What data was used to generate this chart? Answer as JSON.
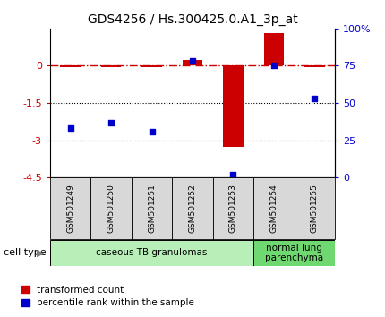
{
  "title": "GDS4256 / Hs.300425.0.A1_3p_at",
  "samples": [
    "GSM501249",
    "GSM501250",
    "GSM501251",
    "GSM501252",
    "GSM501253",
    "GSM501254",
    "GSM501255"
  ],
  "red_values": [
    -0.04,
    -0.05,
    -0.06,
    0.22,
    -3.25,
    1.32,
    -0.05
  ],
  "blue_percentiles": [
    33,
    37,
    31,
    78,
    2,
    75,
    53
  ],
  "ylim_left": [
    -4.5,
    1.5
  ],
  "ylim_right": [
    0,
    100
  ],
  "yticks_left": [
    0,
    -1.5,
    -3,
    -4.5
  ],
  "yticks_right": [
    0,
    25,
    50,
    75,
    100
  ],
  "ytick_labels_left": [
    "0",
    "-1.5",
    "-3",
    "-4.5"
  ],
  "ytick_labels_right": [
    "0",
    "25",
    "50",
    "75",
    "100%"
  ],
  "hline_y": 0,
  "dotted_lines": [
    -1.5,
    -3.0
  ],
  "cell_type_groups": [
    {
      "label": "caseous TB granulomas",
      "samples": [
        0,
        1,
        2,
        3,
        4
      ],
      "color": "#b8eeb8"
    },
    {
      "label": "normal lung\nparenchyma",
      "samples": [
        5,
        6
      ],
      "color": "#70d870"
    }
  ],
  "legend_red_label": "transformed count",
  "legend_blue_label": "percentile rank within the sample",
  "bar_width": 0.5,
  "red_color": "#cc0000",
  "blue_color": "#0000cc",
  "dashed_line_color": "#cc0000",
  "bg_color": "#ffffff",
  "cell_type_label": "cell type",
  "tick_label_color_left": "#cc0000",
  "tick_label_color_right": "#0000cc",
  "sample_box_color": "#d8d8d8"
}
